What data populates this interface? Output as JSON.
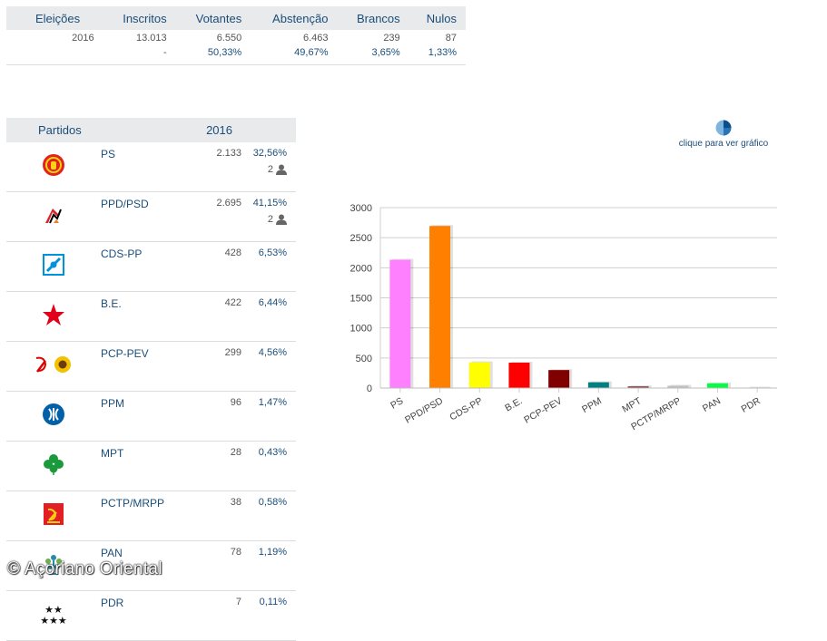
{
  "summary": {
    "headers": [
      "Eleições",
      "Inscritos",
      "Votantes",
      "Abstenção",
      "Brancos",
      "Nulos"
    ],
    "row1": [
      "2016",
      "13.013",
      "6.550",
      "6.463",
      "239",
      "87"
    ],
    "row2": [
      "",
      "-",
      "50,33%",
      "49,67%",
      "3,65%",
      "1,33%"
    ]
  },
  "parties_table": {
    "header_party": "Partidos",
    "header_year": "2016",
    "rows": [
      {
        "name": "PS",
        "votes": "2.133",
        "pct": "32,56%",
        "seats": "2",
        "logo": "ps-logo"
      },
      {
        "name": "PPD/PSD",
        "votes": "2.695",
        "pct": "41,15%",
        "seats": "2",
        "logo": "psd-logo"
      },
      {
        "name": "CDS-PP",
        "votes": "428",
        "pct": "6,53%",
        "seats": "",
        "logo": "cds-logo"
      },
      {
        "name": "B.E.",
        "votes": "422",
        "pct": "6,44%",
        "seats": "",
        "logo": "be-logo"
      },
      {
        "name": "PCP-PEV",
        "votes": "299",
        "pct": "4,56%",
        "seats": "",
        "logo": "pcp-pev-logo"
      },
      {
        "name": "PPM",
        "votes": "96",
        "pct": "1,47%",
        "seats": "",
        "logo": "ppm-logo"
      },
      {
        "name": "MPT",
        "votes": "28",
        "pct": "0,43%",
        "seats": "",
        "logo": "mpt-logo"
      },
      {
        "name": "PCTP/MRPP",
        "votes": "38",
        "pct": "0,58%",
        "seats": "",
        "logo": "pctp-logo"
      },
      {
        "name": "PAN",
        "votes": "78",
        "pct": "1,19%",
        "seats": "",
        "logo": "pan-logo"
      },
      {
        "name": "PDR",
        "votes": "7",
        "pct": "0,11%",
        "seats": "",
        "logo": "pdr-logo"
      }
    ]
  },
  "chart_link": {
    "label": "clique para ver gráfico",
    "icon": "pie-chart-icon"
  },
  "chart_data": {
    "type": "bar",
    "categories": [
      "PS",
      "PPD/PSD",
      "CDS-PP",
      "B.E.",
      "PCP-PEV",
      "PPM",
      "MPT",
      "PCTP/MRPP",
      "PAN",
      "PDR"
    ],
    "values": [
      2133,
      2695,
      428,
      422,
      299,
      96,
      28,
      38,
      78,
      7
    ],
    "colors": [
      "#ff80ff",
      "#ff8000",
      "#ffff00",
      "#ff0000",
      "#800000",
      "#008080",
      "#804040",
      "#c0c0c0",
      "#00ff40",
      "#80c0c0"
    ],
    "yticks": [
      0,
      500,
      1000,
      1500,
      2000,
      2500,
      3000
    ],
    "ylim": [
      0,
      3000
    ],
    "grid": true
  },
  "watermark": "© Açoriano Oriental"
}
